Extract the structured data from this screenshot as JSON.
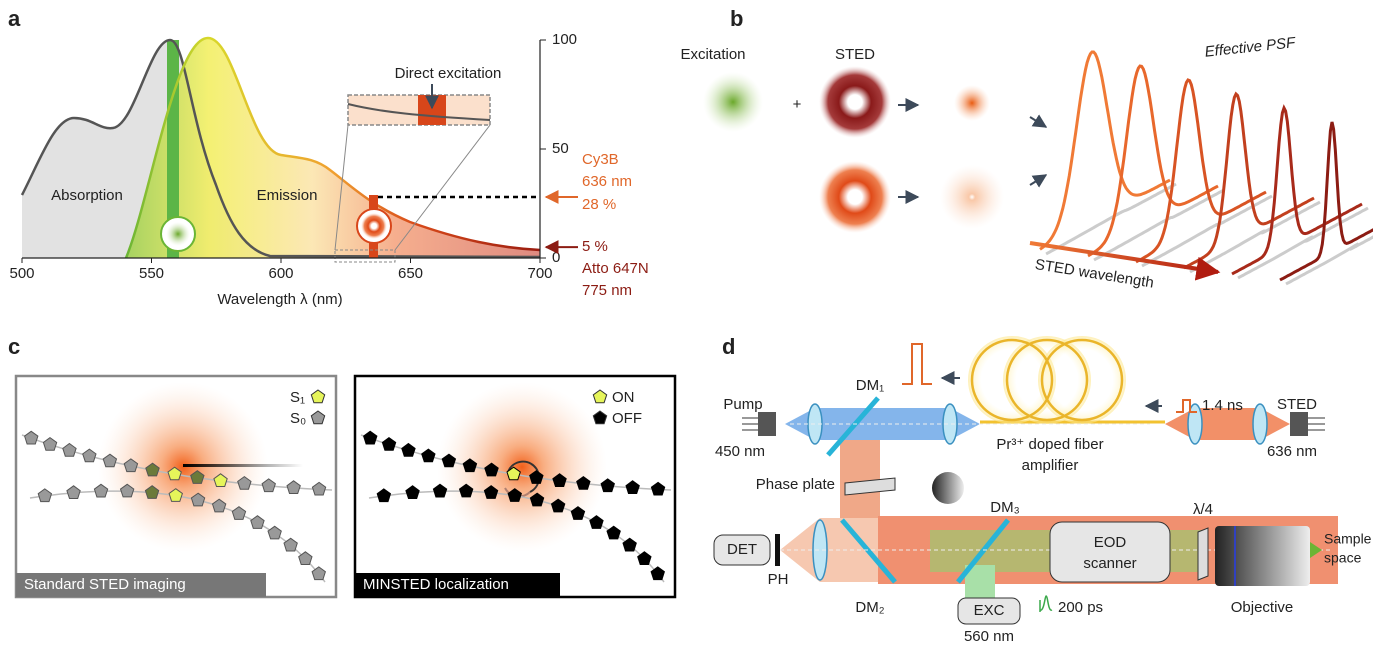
{
  "panel_labels": [
    "a",
    "b",
    "c",
    "d"
  ],
  "panel_a": {
    "xlim": [
      500,
      700
    ],
    "xticks": [
      500,
      550,
      600,
      650,
      700
    ],
    "ylim": [
      0,
      100
    ],
    "yticks": [
      0,
      50,
      100
    ],
    "x_label": "Wavelength λ (nm)",
    "absorption_label": "Absorption",
    "emission_label": "Emission",
    "inset_label": "Direct excitation",
    "dyes": [
      {
        "name": "Cy3B",
        "wavelength": "636 nm",
        "fraction": {
          "value": 28,
          "label": "28 %"
        },
        "color": "#e0672a"
      },
      {
        "name": "Atto 647N",
        "wavelength": "775 nm",
        "fraction": {
          "value": 5,
          "label": "5 %"
        },
        "color": "#8c1c13"
      }
    ]
  },
  "panel_b": {
    "excitation_label": "Excitation",
    "sted_label": "STED",
    "plus": "+",
    "psf_label": "Effective PSF",
    "wavelength_axis_label": "STED wavelength"
  },
  "panel_c": {
    "standard": {
      "caption": "Standard STED imaging",
      "legend": [
        "S₁",
        "S₀"
      ]
    },
    "minsted": {
      "caption": "MINSTED localization",
      "legend": [
        "ON",
        "OFF"
      ]
    }
  },
  "panel_d": {
    "pump": {
      "label": "Pump",
      "wavelength": "450 nm"
    },
    "sted": {
      "label": "STED",
      "wavelength": "636 nm",
      "pulse": "1.4 ns"
    },
    "fiber": [
      "Pr³⁺ doped fiber",
      "amplifier"
    ],
    "dichroics": [
      "DM₁",
      "DM₂",
      "DM₃"
    ],
    "phase_plate": "Phase plate",
    "quarter_wave": "λ/4",
    "detector": "DET",
    "pinhole": "PH",
    "excitation": {
      "label": "EXC",
      "wavelength": "560 nm",
      "pulse": "200 ps"
    },
    "scanner": [
      "EOD",
      "scanner"
    ],
    "objective": "Objective",
    "sample": [
      "Sample",
      "space"
    ]
  }
}
